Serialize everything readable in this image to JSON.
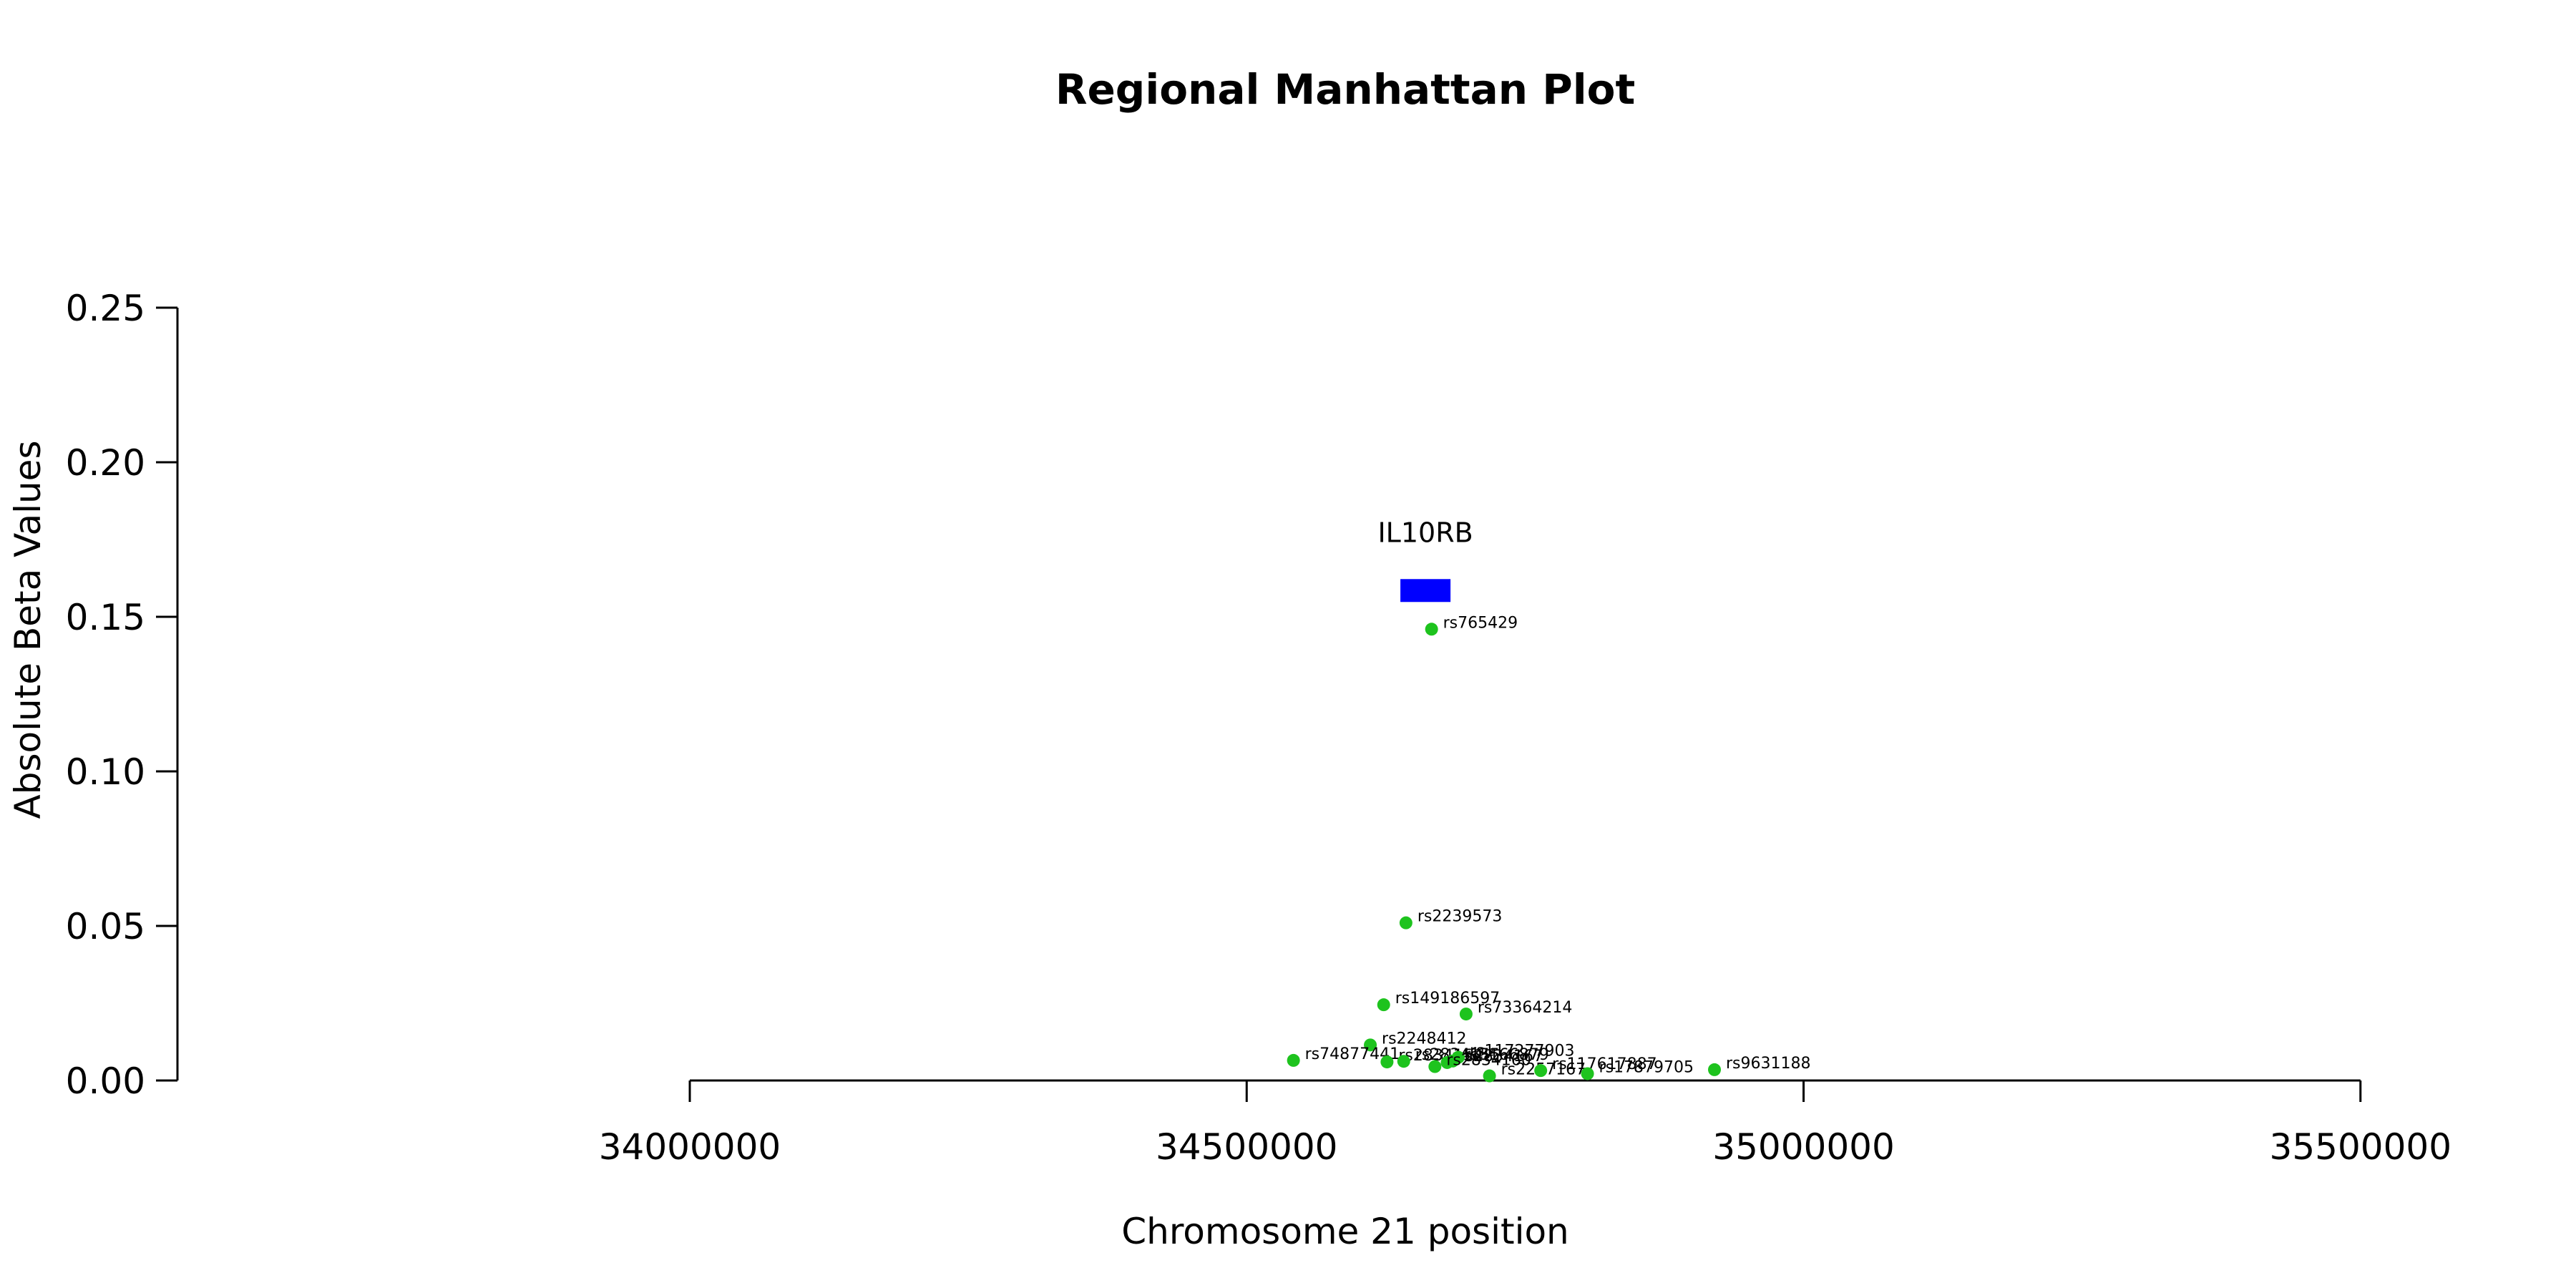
{
  "chart_data": {
    "type": "scatter",
    "title": "Regional Manhattan Plot",
    "xlabel": "Chromosome 21 position",
    "ylabel": "Absolute Beta Values",
    "xlim": [
      33540000,
      35610000
    ],
    "ylim": [
      0,
      0.25
    ],
    "x_ticks": [
      34000000,
      34500000,
      35000000,
      35500000
    ],
    "x_tick_labels": [
      "34000000",
      "34500000",
      "35000000",
      "35500000"
    ],
    "y_ticks": [
      0,
      0.05,
      0.1,
      0.15,
      0.2,
      0.25
    ],
    "y_tick_labels": [
      "0.00",
      "0.05",
      "0.10",
      "0.15",
      "0.20",
      "0.25"
    ],
    "grid": false,
    "point_color": "#1ec31e",
    "gene": {
      "name": "IL10RB",
      "start": 34638000,
      "end": 34683000,
      "y": 0.1585,
      "color": "#0000ff"
    },
    "series": [
      {
        "points": [
          {
            "label": "rs765429",
            "x": 34666000,
            "y": 0.146
          },
          {
            "label": "rs2239573",
            "x": 34643000,
            "y": 0.051
          },
          {
            "label": "rs149186597",
            "x": 34623000,
            "y": 0.0245
          },
          {
            "label": "rs73364214",
            "x": 34697000,
            "y": 0.0215
          },
          {
            "label": "rs2248412",
            "x": 34611000,
            "y": 0.0115
          },
          {
            "label": "rs74877441",
            "x": 34542000,
            "y": 0.0065
          },
          {
            "label": "rs2834154",
            "x": 34626000,
            "y": 0.006
          },
          {
            "label": "rs2834155",
            "x": 34641000,
            "y": 0.0062
          },
          {
            "label": "rs2834167",
            "x": 34680000,
            "y": 0.0058
          },
          {
            "label": "rs117277903",
            "x": 34690000,
            "y": 0.0075
          },
          {
            "label": "rs3166879",
            "x": 34685000,
            "y": 0.0063
          },
          {
            "label": "rs2834160",
            "x": 34669000,
            "y": 0.0045
          },
          {
            "label": "rs2257167",
            "x": 34718000,
            "y": 0.0015
          },
          {
            "label": "rs117617887",
            "x": 34764000,
            "y": 0.0032
          },
          {
            "label": "rs17879705",
            "x": 34806000,
            "y": 0.0022
          },
          {
            "label": "rs9631188",
            "x": 34920000,
            "y": 0.0035
          }
        ]
      }
    ]
  }
}
